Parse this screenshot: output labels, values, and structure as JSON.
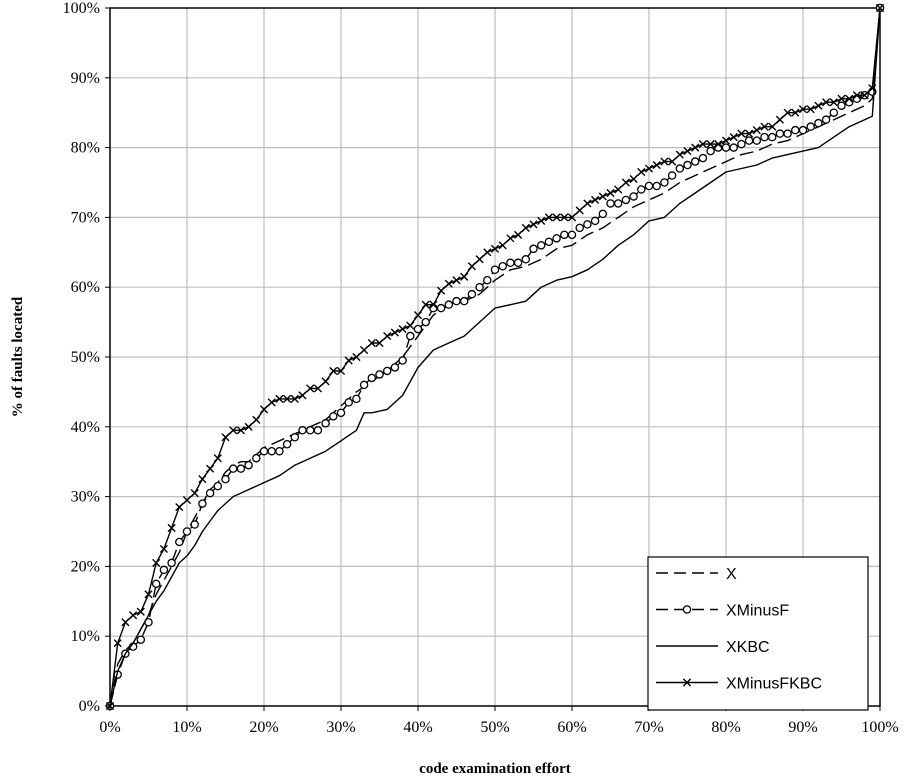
{
  "chart_data": {
    "type": "line",
    "title": "",
    "xlabel": "code examination effort",
    "ylabel": "% of faults located",
    "xlim": [
      0,
      100
    ],
    "ylim": [
      0,
      100
    ],
    "grid": true,
    "legend_position": "bottom-right",
    "x_ticks": [
      "0%",
      "10%",
      "20%",
      "30%",
      "40%",
      "50%",
      "60%",
      "70%",
      "80%",
      "90%",
      "100%"
    ],
    "y_ticks": [
      "0%",
      "10%",
      "20%",
      "30%",
      "40%",
      "50%",
      "60%",
      "70%",
      "80%",
      "90%",
      "100%"
    ],
    "series": [
      {
        "name": "X",
        "line_style": "dashed",
        "marker": "none",
        "x": [
          0,
          1,
          2,
          3,
          4,
          5,
          6,
          7,
          8,
          9,
          10,
          11,
          12,
          13,
          14,
          15,
          16,
          17,
          18,
          19,
          20,
          22,
          24,
          26,
          28,
          30,
          32,
          34,
          36,
          38,
          40,
          42,
          44,
          46,
          48,
          50,
          52,
          54,
          56,
          58,
          60,
          62,
          64,
          66,
          68,
          70,
          72,
          74,
          76,
          78,
          80,
          82,
          84,
          86,
          88,
          90,
          92,
          94,
          96,
          98,
          99,
          100
        ],
        "y": [
          0,
          6,
          8,
          9,
          11,
          13,
          16,
          18,
          20,
          22,
          25,
          27,
          29,
          31,
          32,
          33.5,
          34.5,
          35,
          35,
          36,
          37,
          38,
          39,
          40,
          41,
          43,
          45,
          46.5,
          48,
          50,
          53,
          56,
          57.5,
          58,
          59,
          61,
          62.5,
          63,
          64,
          65.5,
          66,
          67.5,
          68.5,
          70,
          71.5,
          72.5,
          73.5,
          75,
          76,
          77,
          78,
          79,
          79.5,
          80.5,
          81,
          82,
          83,
          84,
          85,
          86,
          87,
          100
        ]
      },
      {
        "name": "XMinusF",
        "line_style": "dashed",
        "marker": "circle",
        "x": [
          0,
          1,
          2,
          3,
          4,
          5,
          6,
          7,
          8,
          9,
          10,
          11,
          12,
          13,
          14,
          15,
          16,
          17,
          18,
          19,
          20,
          21,
          22,
          23,
          24,
          25,
          26,
          27,
          28,
          29,
          30,
          31,
          32,
          33,
          34,
          35,
          36,
          37,
          38,
          39,
          40,
          41,
          42,
          43,
          44,
          45,
          46,
          47,
          48,
          49,
          50,
          51,
          52,
          53,
          54,
          55,
          56,
          57,
          58,
          59,
          60,
          61,
          62,
          63,
          64,
          65,
          66,
          67,
          68,
          69,
          70,
          71,
          72,
          73,
          74,
          75,
          76,
          77,
          78,
          79,
          80,
          81,
          82,
          83,
          84,
          85,
          86,
          87,
          88,
          89,
          90,
          91,
          92,
          93,
          94,
          95,
          96,
          97,
          98,
          99,
          100
        ],
        "y": [
          0,
          4.5,
          7.5,
          8.5,
          9.5,
          12,
          17.5,
          19.5,
          20.5,
          23.5,
          25,
          26,
          29,
          30.5,
          31.5,
          32.5,
          34,
          34,
          34.5,
          35.5,
          36.5,
          36.5,
          36.5,
          37.5,
          38.5,
          39.5,
          39.5,
          39.5,
          40.5,
          41.5,
          42,
          43.5,
          44,
          46,
          47,
          47.5,
          48,
          48.5,
          49.5,
          53,
          54,
          55,
          57,
          57,
          57.5,
          58,
          58,
          59,
          60,
          61,
          62.5,
          63,
          63.5,
          63.5,
          64,
          65.5,
          66,
          66.5,
          67,
          67.5,
          67.5,
          68.5,
          69,
          69.5,
          70.5,
          72,
          72,
          72.5,
          73,
          74,
          74.5,
          74.5,
          75,
          76,
          77,
          77.5,
          78,
          78.5,
          79.5,
          80,
          80,
          80,
          80.5,
          81,
          81,
          81.5,
          81.5,
          82,
          82,
          82.5,
          82.5,
          83,
          83.5,
          84,
          85,
          86,
          86.5,
          87,
          87.5,
          88,
          100
        ]
      },
      {
        "name": "XKBC",
        "line_style": "solid",
        "marker": "none",
        "x": [
          0,
          1,
          2,
          3,
          4,
          5,
          6,
          7,
          8,
          9,
          10,
          11,
          12,
          13,
          14,
          15,
          16,
          17,
          18,
          19,
          20,
          22,
          24,
          26,
          28,
          30,
          32,
          33,
          34,
          36,
          38,
          40,
          42,
          44,
          46,
          48,
          50,
          52,
          54,
          56,
          58,
          60,
          62,
          64,
          66,
          68,
          70,
          72,
          74,
          76,
          78,
          80,
          82,
          84,
          86,
          88,
          90,
          92,
          94,
          96,
          98,
          99,
          100
        ],
        "y": [
          0,
          5,
          7.5,
          9,
          11,
          13,
          15,
          16.5,
          18.5,
          20.5,
          21.5,
          23,
          25,
          26.5,
          28,
          29,
          30,
          30.5,
          31,
          31.5,
          32,
          33,
          34.5,
          35.5,
          36.5,
          38,
          39.5,
          42,
          42,
          42.5,
          44.5,
          48.5,
          51,
          52,
          53,
          55,
          57,
          57.5,
          58,
          60,
          61,
          61.5,
          62.5,
          64,
          66,
          67.5,
          69.5,
          70,
          72,
          73.5,
          75,
          76.5,
          77,
          77.5,
          78.5,
          79,
          79.5,
          80,
          81.5,
          83,
          84,
          84.5,
          100
        ]
      },
      {
        "name": "XMinusFKBC",
        "line_style": "solid",
        "marker": "x",
        "x": [
          0,
          1,
          2,
          3,
          4,
          5,
          6,
          7,
          8,
          9,
          10,
          11,
          12,
          13,
          14,
          15,
          16,
          17,
          18,
          19,
          20,
          21,
          22,
          23,
          24,
          25,
          26,
          27,
          28,
          29,
          30,
          31,
          32,
          33,
          34,
          35,
          36,
          37,
          38,
          39,
          40,
          41,
          42,
          43,
          44,
          45,
          46,
          47,
          48,
          49,
          50,
          51,
          52,
          53,
          54,
          55,
          56,
          57,
          58,
          59,
          60,
          61,
          62,
          63,
          64,
          65,
          66,
          67,
          68,
          69,
          70,
          71,
          72,
          73,
          74,
          75,
          76,
          77,
          78,
          79,
          80,
          81,
          82,
          83,
          84,
          85,
          86,
          87,
          88,
          89,
          90,
          91,
          92,
          93,
          94,
          95,
          96,
          97,
          98,
          99,
          100
        ],
        "y": [
          0,
          9,
          12,
          13,
          13.5,
          16,
          20.5,
          22.5,
          25.5,
          28.5,
          29.5,
          30.5,
          32.5,
          34,
          35.5,
          38.5,
          39.5,
          39.5,
          40,
          41,
          42.5,
          43.5,
          44,
          44,
          44,
          44.5,
          45.5,
          45.5,
          46.5,
          48,
          48,
          49.5,
          50,
          51,
          52,
          52,
          53,
          53.5,
          54,
          54.5,
          56,
          57.5,
          57.5,
          59.5,
          60.5,
          61,
          61.5,
          63,
          64,
          65,
          65.5,
          66,
          67,
          67.5,
          68.5,
          69,
          69.5,
          70,
          70,
          70,
          70,
          71,
          72,
          72.5,
          73,
          73.5,
          74,
          75,
          75.5,
          76.5,
          77,
          77.5,
          78,
          78,
          79,
          79.5,
          80,
          80.5,
          80.5,
          80.5,
          81,
          81.5,
          82,
          82,
          82.5,
          83,
          83,
          84,
          85,
          85,
          85.5,
          85.5,
          86,
          86.5,
          86.5,
          87,
          87,
          87.5,
          87.5,
          88.5,
          100
        ]
      }
    ]
  },
  "colors": {
    "line": "#000000",
    "grid": "#bdbdbd",
    "background": "#ffffff"
  }
}
